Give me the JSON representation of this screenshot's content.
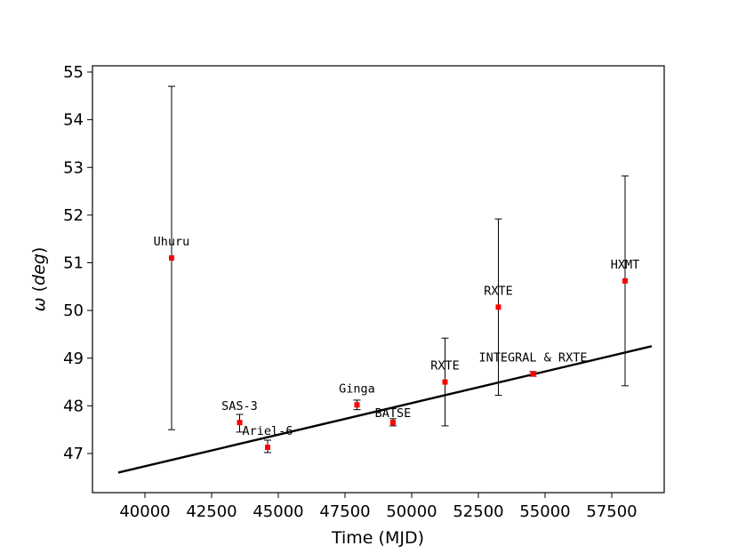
{
  "chart_data": {
    "type": "scatter",
    "title": "",
    "xlabel": "Time (MJD)",
    "ylabel": "ω (deg)",
    "xlim": [
      38000,
      60000
    ],
    "ylim": [
      46.2,
      55.1
    ],
    "x_ticks": [
      40000,
      42500,
      45000,
      47500,
      50000,
      52500,
      55000,
      57500
    ],
    "y_ticks": [
      47,
      48,
      49,
      50,
      51,
      52,
      53,
      54,
      55
    ],
    "grid": false,
    "legend": "none",
    "colors": {
      "points": "#ff0000",
      "errorbars": "#000000",
      "fit": "#000000"
    },
    "points": [
      {
        "label": "Uhuru",
        "x": 41000,
        "y": 51.1,
        "err_low": 47.5,
        "err_high": 54.7
      },
      {
        "label": "SAS-3",
        "x": 43550,
        "y": 47.65,
        "err_low": 47.45,
        "err_high": 47.82
      },
      {
        "label": "Ariel-6",
        "x": 44600,
        "y": 47.13,
        "err_low": 47.02,
        "err_high": 47.28
      },
      {
        "label": "Ginga",
        "x": 47950,
        "y": 48.02,
        "err_low": 47.92,
        "err_high": 48.12
      },
      {
        "label": "BATSE",
        "x": 49300,
        "y": 47.65,
        "err_low": 47.58,
        "err_high": 47.73
      },
      {
        "label": "RXTE",
        "x": 51250,
        "y": 48.5,
        "err_low": 47.58,
        "err_high": 49.42
      },
      {
        "label": "RXTE",
        "x": 53250,
        "y": 50.07,
        "err_low": 48.22,
        "err_high": 51.92
      },
      {
        "label": "INTEGRAL & RXTE",
        "x": 54550,
        "y": 48.67,
        "err_low": 48.62,
        "err_high": 48.72
      },
      {
        "label": "HXMT",
        "x": 58000,
        "y": 50.62,
        "err_low": 48.42,
        "err_high": 52.82
      }
    ],
    "fit_line": {
      "x": [
        39000,
        59000
      ],
      "y": [
        46.6,
        49.25
      ]
    }
  }
}
